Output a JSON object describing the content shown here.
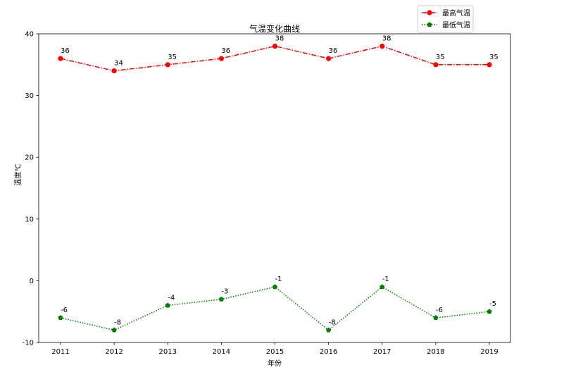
{
  "chart_data": {
    "type": "line",
    "title": "气温变化曲线",
    "xlabel": "年份",
    "ylabel": "温度℃",
    "categories": [
      "2011",
      "2012",
      "2013",
      "2014",
      "2015",
      "2016",
      "2017",
      "2018",
      "2019"
    ],
    "ylim": [
      -10,
      40
    ],
    "yticks": [
      -10,
      0,
      10,
      20,
      30,
      40
    ],
    "grid": false,
    "legend_position": "top-right, above plot",
    "series": [
      {
        "name": "最高气温",
        "values": [
          36,
          34,
          35,
          36,
          38,
          36,
          38,
          35,
          35
        ],
        "color": "#ff0000",
        "line_style": "dash-dot",
        "marker": "circle",
        "data_labels": [
          "36",
          "34",
          "35",
          "36",
          "38",
          "36",
          "38",
          "35",
          "35"
        ]
      },
      {
        "name": "最低气温",
        "values": [
          -6,
          -8,
          -4,
          -3,
          -1,
          -8,
          -1,
          -6,
          -5
        ],
        "color": "#008000",
        "line_style": "dotted",
        "marker": "pentagon",
        "data_labels": [
          "-6",
          "-8",
          "-4",
          "-3",
          "-1",
          "-8",
          "-1",
          "-6",
          "-5"
        ]
      }
    ]
  }
}
